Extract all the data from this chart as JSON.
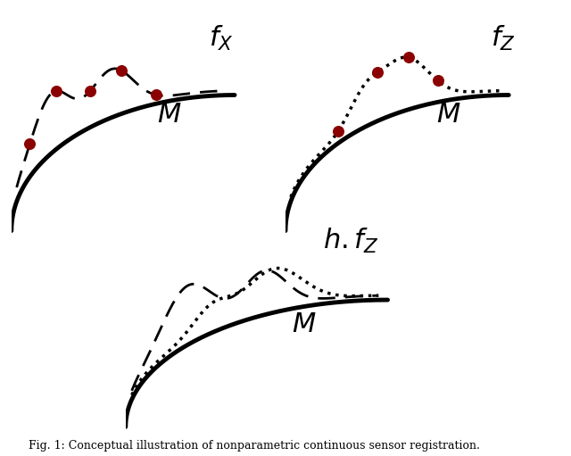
{
  "fig_width": 6.4,
  "fig_height": 5.11,
  "dpi": 100,
  "bg_color": "#ffffff",
  "manifold_color": "#000000",
  "manifold_lw": 3.5,
  "curve_color": "#000000",
  "curve_lw": 2.0,
  "dot_lw": 2.5,
  "dot_color": "#8b0000",
  "dot_size": 70,
  "dot_marker": "o",
  "caption": "Fig. 1: Conceptual illustration of nonparametric continuous sensor registration.",
  "caption_fontsize": 9
}
